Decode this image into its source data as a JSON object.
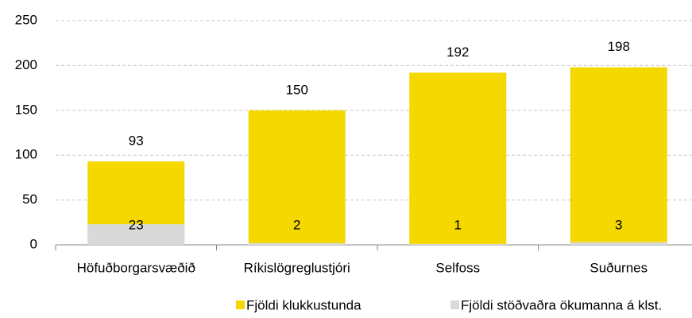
{
  "chart_data": {
    "type": "bar",
    "categories": [
      "Höfuðborgarsvæðið",
      "Ríkislögreglustjóri",
      "Selfoss",
      "Suðurnes"
    ],
    "series": [
      {
        "name": "Fjöldi klukkustunda",
        "color": "#f5d800",
        "values": [
          93,
          150,
          192,
          198
        ]
      },
      {
        "name": "Fjöldi stöðvaðra ökumanna á klst.",
        "color": "#d9d9d9",
        "values": [
          23,
          2,
          1,
          3
        ]
      }
    ],
    "ylim": [
      0,
      250
    ],
    "yticks": [
      0,
      50,
      100,
      150,
      200,
      250
    ],
    "grid": true,
    "legend": "bottom"
  }
}
